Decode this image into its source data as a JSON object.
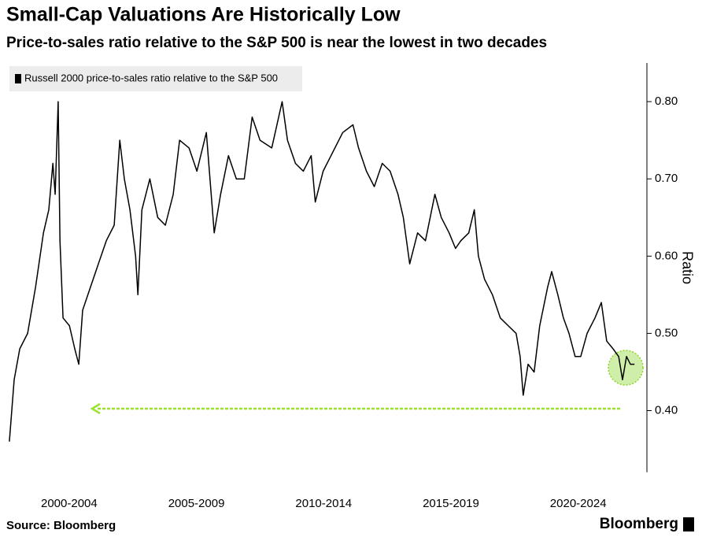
{
  "chart_data": {
    "type": "line",
    "title": "Small-Cap Valuations Are Historically Low",
    "subtitle": "Price-to-sales ratio relative to the S&P 500 is near the lowest in two decades",
    "y_label": "Ratio",
    "source": "Source: Bloomberg",
    "brand": "Bloomberg",
    "x": [
      2000.15,
      2000.34,
      2000.56,
      2000.87,
      2001.18,
      2001.49,
      2001.7,
      2001.86,
      2001.95,
      2002.07,
      2002.14,
      2002.26,
      2002.51,
      2002.72,
      2002.88,
      2003.03,
      2003.34,
      2003.65,
      2003.96,
      2004.27,
      2004.49,
      2004.67,
      2004.89,
      2005.11,
      2005.2,
      2005.36,
      2005.67,
      2005.98,
      2006.28,
      2006.59,
      2006.84,
      2007.21,
      2007.52,
      2007.89,
      2008.2,
      2008.45,
      2008.76,
      2009.07,
      2009.38,
      2009.69,
      2010.0,
      2010.46,
      2010.87,
      2011.08,
      2011.39,
      2011.7,
      2012.01,
      2012.17,
      2012.48,
      2012.79,
      2013.25,
      2013.65,
      2013.87,
      2014.18,
      2014.49,
      2014.8,
      2015.11,
      2015.42,
      2015.63,
      2015.88,
      2016.19,
      2016.5,
      2016.87,
      2017.12,
      2017.43,
      2017.68,
      2017.89,
      2018.2,
      2018.42,
      2018.58,
      2018.82,
      2019.13,
      2019.44,
      2019.75,
      2020.06,
      2020.22,
      2020.34,
      2020.53,
      2020.77,
      2020.99,
      2021.3,
      2021.46,
      2021.7,
      2021.92,
      2022.14,
      2022.38,
      2022.6,
      2022.85,
      2023.16,
      2023.41,
      2023.62,
      2023.87,
      2024.09,
      2024.24,
      2024.4,
      2024.55,
      2024.71
    ],
    "series": [
      {
        "name": "Russell 2000 price-to-sales ratio relative to the S&P 500",
        "color": "#000000",
        "values": [
          0.36,
          0.44,
          0.48,
          0.5,
          0.56,
          0.63,
          0.66,
          0.72,
          0.68,
          0.8,
          0.62,
          0.52,
          0.51,
          0.48,
          0.46,
          0.53,
          0.56,
          0.59,
          0.62,
          0.64,
          0.75,
          0.7,
          0.66,
          0.6,
          0.55,
          0.66,
          0.7,
          0.65,
          0.64,
          0.68,
          0.75,
          0.74,
          0.71,
          0.76,
          0.63,
          0.68,
          0.73,
          0.7,
          0.7,
          0.78,
          0.75,
          0.74,
          0.8,
          0.75,
          0.72,
          0.71,
          0.73,
          0.67,
          0.71,
          0.73,
          0.76,
          0.77,
          0.74,
          0.71,
          0.69,
          0.72,
          0.71,
          0.68,
          0.65,
          0.59,
          0.63,
          0.62,
          0.68,
          0.65,
          0.63,
          0.61,
          0.62,
          0.63,
          0.66,
          0.6,
          0.57,
          0.55,
          0.52,
          0.51,
          0.5,
          0.47,
          0.42,
          0.46,
          0.45,
          0.51,
          0.56,
          0.58,
          0.55,
          0.52,
          0.5,
          0.47,
          0.47,
          0.5,
          0.52,
          0.54,
          0.49,
          0.48,
          0.47,
          0.44,
          0.47,
          0.46,
          0.46
        ]
      }
    ],
    "xlim": [
      2000,
      2025.2
    ],
    "ylim": [
      0.32,
      0.85
    ],
    "yticks": [
      {
        "value": 0.4,
        "label": "0.40"
      },
      {
        "value": 0.5,
        "label": "0.50"
      },
      {
        "value": 0.6,
        "label": "0.60"
      },
      {
        "value": 0.7,
        "label": "0.70"
      },
      {
        "value": 0.8,
        "label": "0.80"
      }
    ],
    "xticks": [
      {
        "value": 2002.5,
        "label": "2000-2004"
      },
      {
        "value": 2007.5,
        "label": "2005-2009"
      },
      {
        "value": 2012.5,
        "label": "2010-2014"
      },
      {
        "value": 2017.5,
        "label": "2015-2019"
      },
      {
        "value": 2022.5,
        "label": "2020-2024"
      }
    ]
  }
}
